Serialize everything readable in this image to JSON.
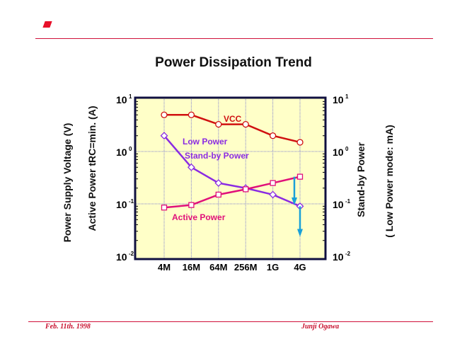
{
  "header": {
    "title": "Power Dissipation Trend"
  },
  "footer": {
    "date": "Feb. 11th. 1998",
    "author": "Junji  Ogawa"
  },
  "chart_data": {
    "type": "line",
    "title": "Power Dissipation Trend",
    "categories": [
      "4M",
      "16M",
      "64M",
      "256M",
      "1G",
      "4G"
    ],
    "ylabel_left": [
      "Power Supply Voltage (V)",
      "Active Power  tRC=min. (A)"
    ],
    "ylabel_right": [
      "Stand-by Power",
      "( Low Power mode: mA)"
    ],
    "yscale": "log",
    "ylim": [
      0.01,
      10
    ],
    "yticks": [
      {
        "base": "10",
        "exp": "1",
        "v": 10
      },
      {
        "base": "10",
        "exp": "0",
        "v": 1
      },
      {
        "base": "10",
        "exp": "-1",
        "v": 0.1
      },
      {
        "base": "10",
        "exp": "-2",
        "v": 0.01
      }
    ],
    "grid": true,
    "series": [
      {
        "name": "VCC",
        "color": "#d01010",
        "marker": "circle",
        "values": [
          5,
          5,
          3.3,
          3.3,
          2.0,
          1.5
        ]
      },
      {
        "name": "Low Power Stand-by Power",
        "label_lines": [
          "Low Power",
          "Stand-by Power"
        ],
        "color": "#8a2be2",
        "marker": "diamond",
        "values": [
          2.0,
          0.5,
          0.25,
          0.2,
          0.15,
          0.09
        ]
      },
      {
        "name": "Active Power",
        "color": "#e0107a",
        "marker": "square",
        "values": [
          0.085,
          0.095,
          0.15,
          0.19,
          0.25,
          0.33
        ]
      }
    ],
    "annotations": [
      {
        "type": "arrow",
        "color": "#1aa0d8",
        "from": 0.33,
        "to": 0.1,
        "near": "4G"
      },
      {
        "type": "arrow",
        "color": "#1aa0d8",
        "from": 0.09,
        "to": 0.025,
        "at": "4G"
      }
    ]
  }
}
